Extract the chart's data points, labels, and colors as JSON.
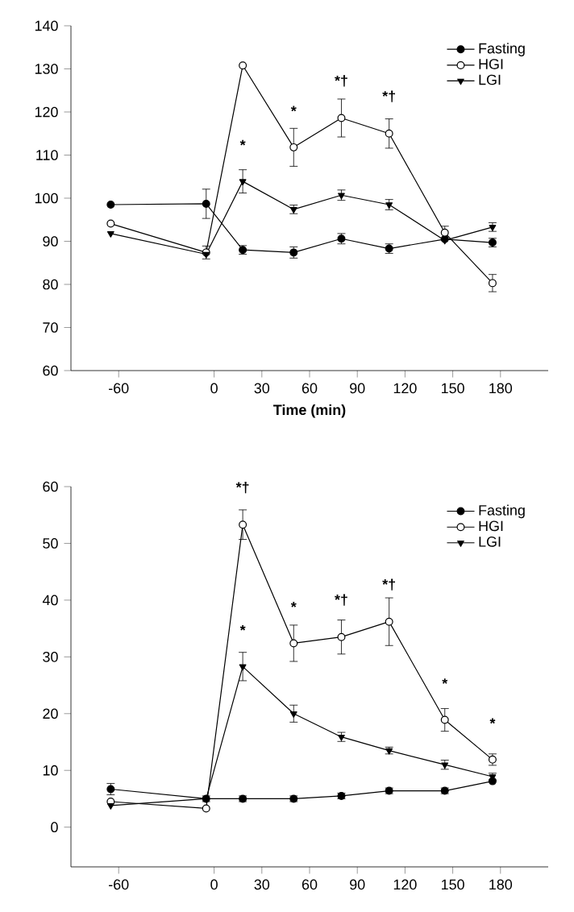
{
  "chart_data": [
    {
      "type": "line",
      "xlabel": "Time (min)",
      "x": [
        -65,
        -5,
        18,
        50,
        80,
        110,
        145,
        175
      ],
      "xlim": [
        -90,
        210
      ],
      "xticks": [
        -60,
        0,
        30,
        60,
        90,
        120,
        150,
        180
      ],
      "ylim": [
        60,
        140
      ],
      "yticks": [
        60,
        70,
        80,
        90,
        100,
        110,
        120,
        130,
        140
      ],
      "legend": "top right",
      "series": [
        {
          "name": "Fasting",
          "color": "#000000",
          "marker": "circle",
          "values": [
            98.5,
            98.7,
            88,
            87.4,
            90.6,
            88.3,
            90.5,
            89.7
          ],
          "errors": [
            null,
            3.4,
            1,
            1.3,
            1.2,
            1.1,
            null,
            1
          ]
        },
        {
          "name": "HGI",
          "color": "#000000",
          "marker": "circle",
          "values": [
            94.1,
            87.4,
            130.8,
            111.8,
            118.6,
            115,
            92,
            80.3
          ],
          "errors": [
            null,
            1.5,
            null,
            4.4,
            4.4,
            3.4,
            1.5,
            2
          ]
        },
        {
          "name": "LGI",
          "color": "#000000",
          "marker": "triangle",
          "values": [
            91.8,
            87,
            103.9,
            97.4,
            100.7,
            98.5,
            90.2,
            93.3
          ],
          "errors": [
            null,
            null,
            2.7,
            1,
            1.2,
            1.2,
            null,
            1
          ]
        }
      ],
      "annotations": [
        {
          "text": "*",
          "x": 18,
          "y": 103.9
        },
        {
          "text": "*",
          "x": 50,
          "y": 111.8
        },
        {
          "text": "*†",
          "x": 80,
          "y": 118.6
        },
        {
          "text": "*†",
          "x": 110,
          "y": 115
        }
      ]
    },
    {
      "type": "line",
      "x": [
        -65,
        -5,
        18,
        50,
        80,
        110,
        145,
        175
      ],
      "xlim": [
        -90,
        210
      ],
      "xticks": [
        -60,
        0,
        30,
        60,
        90,
        120,
        150,
        180
      ],
      "ylim": [
        -7,
        60
      ],
      "yticks": [
        0,
        10,
        20,
        30,
        40,
        50,
        60
      ],
      "legend": "top right",
      "series": [
        {
          "name": "Fasting",
          "color": "#000000",
          "marker": "circle",
          "values": [
            6.7,
            5,
            5,
            5,
            5.5,
            6.4,
            6.4,
            8.1
          ],
          "errors": [
            1,
            0.5,
            0.5,
            0.5,
            0.5,
            0.5,
            0.5,
            null
          ]
        },
        {
          "name": "HGI",
          "color": "#000000",
          "marker": "circle",
          "values": [
            4.5,
            3.3,
            53.3,
            32.4,
            33.5,
            36.2,
            18.9,
            11.9
          ],
          "errors": [
            null,
            null,
            2.6,
            3.2,
            3,
            4.2,
            2,
            1
          ]
        },
        {
          "name": "LGI",
          "color": "#000000",
          "marker": "triangle",
          "values": [
            3.8,
            5,
            28.3,
            20,
            15.9,
            13.5,
            11,
            8.9
          ],
          "errors": [
            null,
            null,
            2.5,
            1.5,
            0.8,
            0.6,
            0.8,
            0.6
          ]
        }
      ],
      "annotations": [
        {
          "text": "*†",
          "x": 18,
          "y": 53.3
        },
        {
          "text": "*",
          "x": 50,
          "y": 32.4
        },
        {
          "text": "*†",
          "x": 80,
          "y": 33.5
        },
        {
          "text": "*†",
          "x": 110,
          "y": 36.2
        },
        {
          "text": "*",
          "x": 18,
          "y": 28.3
        },
        {
          "text": "*",
          "x": 145,
          "y": 18.9
        },
        {
          "text": "*",
          "x": 175,
          "y": 11.9
        }
      ]
    }
  ]
}
